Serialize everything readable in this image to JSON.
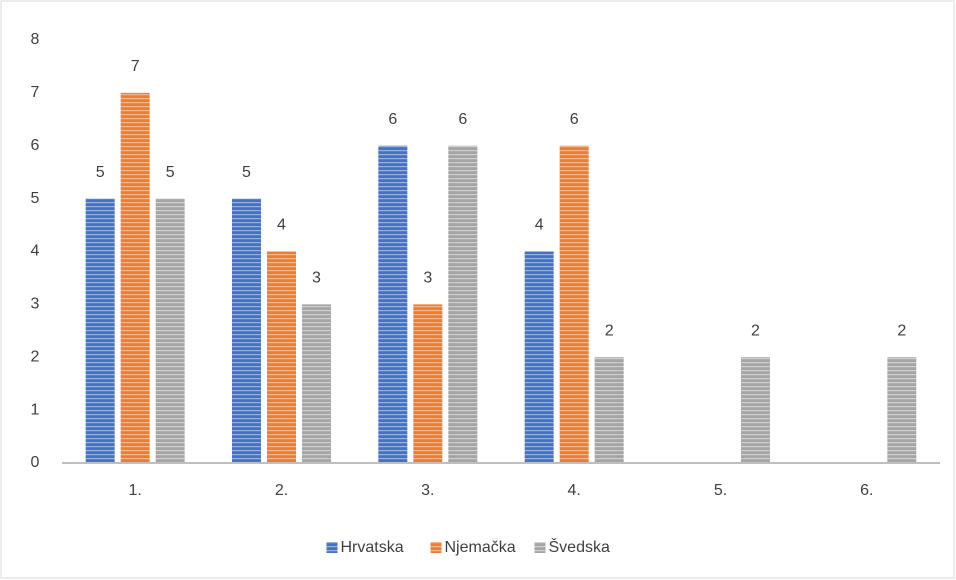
{
  "chart_data": {
    "type": "bar",
    "categories": [
      "1.",
      "2.",
      "3.",
      "4.",
      "5.",
      "6."
    ],
    "series": [
      {
        "name": "Hrvatska",
        "color": "#4472c4",
        "values": [
          5,
          5,
          6,
          4,
          null,
          null
        ]
      },
      {
        "name": "Njemačka",
        "color": "#ed7d31",
        "values": [
          7,
          4,
          3,
          6,
          null,
          null
        ]
      },
      {
        "name": "Švedska",
        "color": "#a5a5a5",
        "values": [
          5,
          3,
          6,
          2,
          2,
          2
        ]
      }
    ],
    "ylim": [
      0,
      8
    ],
    "yticks": [
      0,
      1,
      2,
      3,
      4,
      5,
      6,
      7,
      8
    ],
    "grid": false,
    "legend": "bottom"
  }
}
